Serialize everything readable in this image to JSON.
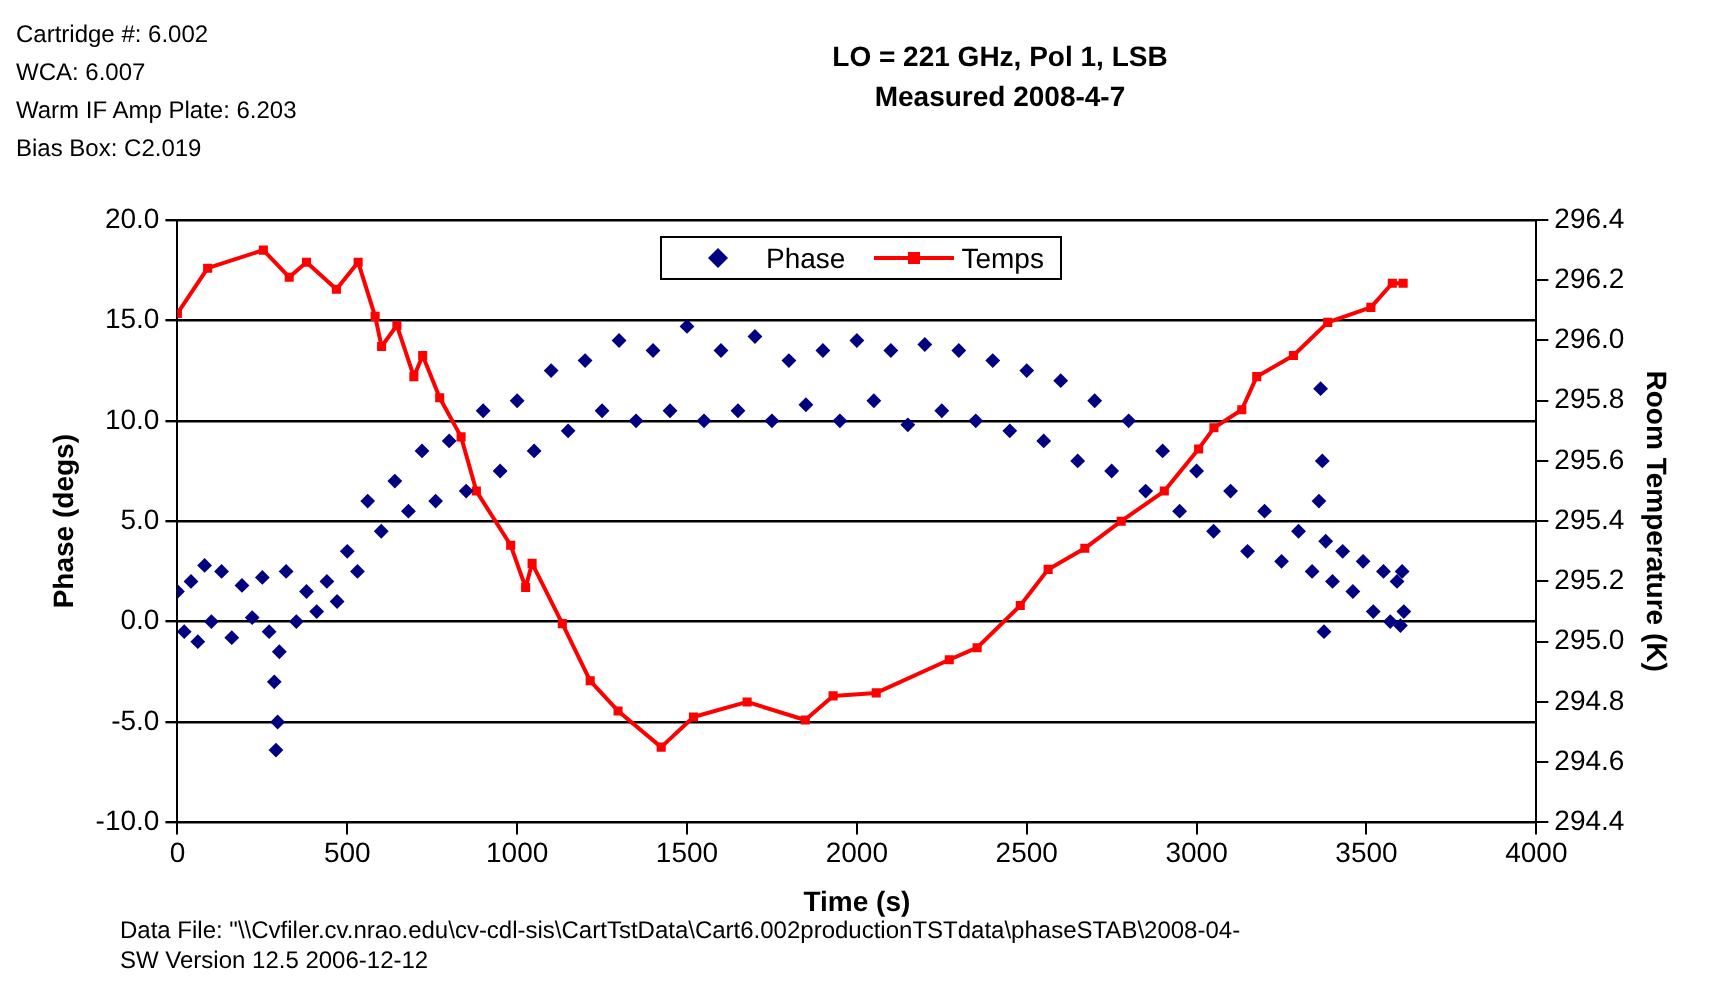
{
  "chart_data": {
    "type": "scatter",
    "title": "LO = 221 GHz, Pol 1, LSB",
    "subtitle": "Measured 2008-4-7",
    "xlabel": "Time (s)",
    "ylabel": "Phase (degs)",
    "y2label": "Room Temperature (K)",
    "annotations": [
      "Cartridge #:  6.002",
      "WCA:  6.007",
      "Warm IF Amp Plate: 6.203",
      "Bias Box:  C2.019",
      "Data File: \"\\\\Cvfiler.cv.nrao.edu\\cv-cdl-sis\\CartTstData\\Cart6.002productionTSTdata\\phaseSTAB\\2008-04-",
      "SW Version 12.5 2006-12-12"
    ],
    "xlim": [
      0,
      4000
    ],
    "xticks": [
      0,
      500,
      1000,
      1500,
      2000,
      2500,
      3000,
      3500,
      4000
    ],
    "ylim": [
      -10,
      20
    ],
    "yticks": [
      {
        "value": -10,
        "label": "-10.0"
      },
      {
        "value": -5,
        "label": "-5.0"
      },
      {
        "value": 0,
        "label": "0.0"
      },
      {
        "value": 5,
        "label": "5.0"
      },
      {
        "value": 10,
        "label": "10.0"
      },
      {
        "value": 15,
        "label": "15.0"
      },
      {
        "value": 20,
        "label": "20.0"
      }
    ],
    "y2lim": [
      294.4,
      296.4
    ],
    "y2ticks": [
      294.4,
      294.6,
      294.8,
      {
        "value": 295,
        "label": "295.0"
      },
      295.2,
      295.4,
      295.6,
      295.8,
      {
        "value": 296,
        "label": "296.0"
      },
      296.2,
      296.4
    ],
    "grid": "y",
    "legend": "top",
    "series": [
      {
        "name": "Phase",
        "type": "scatter",
        "marker": "diamond",
        "color": "#000080",
        "x": [
          0,
          20,
          40,
          60,
          80,
          100,
          130,
          160,
          190,
          220,
          250,
          270,
          285,
          290,
          295,
          300,
          320,
          350,
          380,
          410,
          440,
          470,
          500,
          530,
          560,
          600,
          640,
          680,
          720,
          760,
          800,
          850,
          900,
          950,
          1000,
          1050,
          1100,
          1150,
          1200,
          1250,
          1300,
          1350,
          1400,
          1450,
          1500,
          1550,
          1600,
          1650,
          1700,
          1750,
          1800,
          1850,
          1900,
          1950,
          2000,
          2050,
          2100,
          2150,
          2200,
          2250,
          2300,
          2350,
          2400,
          2450,
          2500,
          2550,
          2600,
          2650,
          2700,
          2750,
          2800,
          2850,
          2900,
          2950,
          3000,
          3050,
          3100,
          3150,
          3200,
          3250,
          3300,
          3340,
          3360,
          3365,
          3370,
          3375,
          3380,
          3400,
          3430,
          3460,
          3490,
          3520,
          3550,
          3570,
          3590,
          3600,
          3605,
          3610
        ],
        "values": [
          1.5,
          -0.5,
          2.0,
          -1.0,
          2.8,
          0.0,
          2.5,
          -0.8,
          1.8,
          0.2,
          2.2,
          -0.5,
          -3.0,
          -6.4,
          -5.0,
          -1.5,
          2.5,
          0.0,
          1.5,
          0.5,
          2.0,
          1.0,
          3.5,
          2.5,
          6.0,
          4.5,
          7.0,
          5.5,
          8.5,
          6.0,
          9.0,
          6.5,
          10.5,
          7.5,
          11.0,
          8.5,
          12.5,
          9.5,
          13.0,
          10.5,
          14.0,
          10.0,
          13.5,
          10.5,
          14.7,
          10.0,
          13.5,
          10.5,
          14.2,
          10.0,
          13.0,
          10.8,
          13.5,
          10.0,
          14.0,
          11.0,
          13.5,
          9.8,
          13.8,
          10.5,
          13.5,
          10.0,
          13.0,
          9.5,
          12.5,
          9.0,
          12.0,
          8.0,
          11.0,
          7.5,
          10.0,
          6.5,
          8.5,
          5.5,
          7.5,
          4.5,
          6.5,
          3.5,
          5.5,
          3.0,
          4.5,
          2.5,
          6.0,
          11.6,
          8.0,
          -0.5,
          4.0,
          2.0,
          3.5,
          1.5,
          3.0,
          0.5,
          2.5,
          0.0,
          2.0,
          -0.2,
          2.5,
          0.5
        ]
      },
      {
        "name": "Temps",
        "type": "line",
        "axis": "y2",
        "marker": "square",
        "line_style": "solid",
        "color": "#ff0000",
        "x": [
          0,
          89,
          253,
          329,
          380,
          468,
          532,
          582,
          601,
          646,
          696,
          722,
          772,
          835,
          880,
          981,
          1025,
          1044,
          1133,
          1215,
          1297,
          1424,
          1519,
          1677,
          1848,
          1930,
          2057,
          2272,
          2354,
          2481,
          2563,
          2671,
          2778,
          2905,
          3006,
          3051,
          3133,
          3177,
          3285,
          3386,
          3513,
          3576,
          3608
        ],
        "values": [
          296.09,
          296.24,
          296.3,
          296.21,
          296.26,
          296.17,
          296.26,
          296.08,
          295.98,
          296.05,
          295.88,
          295.95,
          295.81,
          295.68,
          295.5,
          295.32,
          295.18,
          295.26,
          295.06,
          294.87,
          294.77,
          294.65,
          294.75,
          294.8,
          294.74,
          294.82,
          294.83,
          294.94,
          294.98,
          295.12,
          295.24,
          295.31,
          295.4,
          295.5,
          295.64,
          295.71,
          295.77,
          295.88,
          295.95,
          296.06,
          296.11,
          296.19,
          296.19
        ]
      }
    ]
  }
}
